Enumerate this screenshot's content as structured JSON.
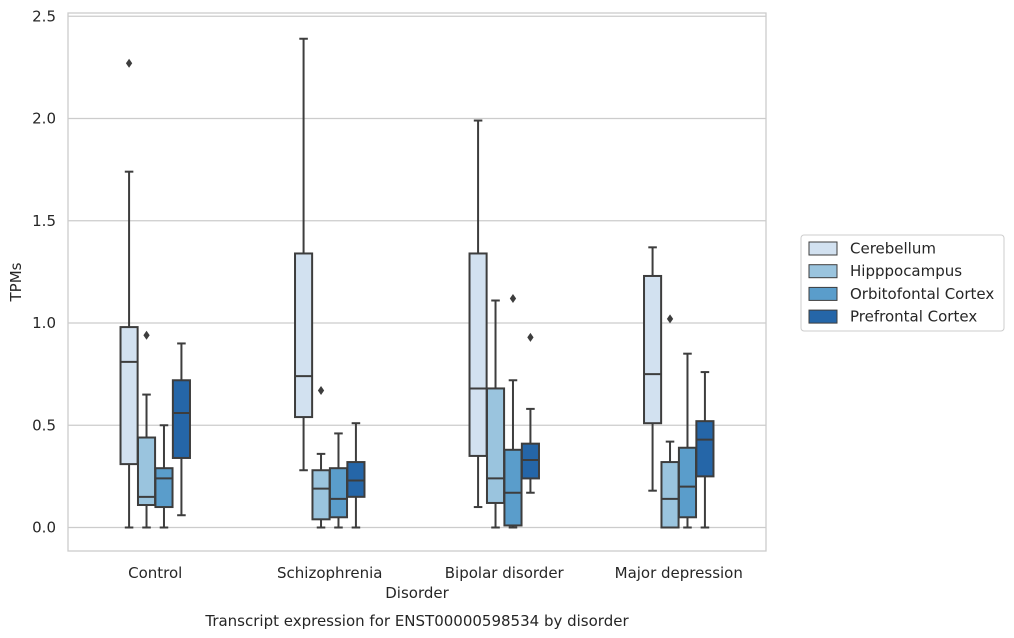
{
  "chart_data": {
    "type": "box",
    "title": "Transcript expression for ENST00000598534 by disorder",
    "xlabel": "Disorder",
    "ylabel": "TPMs",
    "ylim": [
      -0.11,
      2.52
    ],
    "yticks": [
      "0.0",
      "0.5",
      "1.0",
      "1.5",
      "2.0",
      "2.5"
    ],
    "grid": "horizontal",
    "legend_position": "right",
    "categories": [
      "Control",
      "Schizophrenia",
      "Bipolar disorder",
      "Major depression"
    ],
    "series": [
      {
        "name": "Cerebellum",
        "color": "#d2e1f0",
        "boxes": [
          {
            "whislo": 0.0,
            "q1": 0.31,
            "med": 0.81,
            "q3": 0.98,
            "whishi": 1.74,
            "fliers": [
              2.27
            ]
          },
          {
            "whislo": 0.28,
            "q1": 0.54,
            "med": 0.74,
            "q3": 1.34,
            "whishi": 2.39,
            "fliers": []
          },
          {
            "whislo": 0.1,
            "q1": 0.35,
            "med": 0.68,
            "q3": 1.34,
            "whishi": 1.99,
            "fliers": []
          },
          {
            "whislo": 0.18,
            "q1": 0.51,
            "med": 0.75,
            "q3": 1.23,
            "whishi": 1.37,
            "fliers": []
          }
        ]
      },
      {
        "name": "Hipppocampus",
        "color": "#9ac4de",
        "boxes": [
          {
            "whislo": 0.0,
            "q1": 0.11,
            "med": 0.15,
            "q3": 0.44,
            "whishi": 0.65,
            "fliers": [
              0.94
            ]
          },
          {
            "whislo": 0.0,
            "q1": 0.04,
            "med": 0.19,
            "q3": 0.28,
            "whishi": 0.36,
            "fliers": [
              0.67
            ]
          },
          {
            "whislo": 0.0,
            "q1": 0.12,
            "med": 0.24,
            "q3": 0.68,
            "whishi": 1.11,
            "fliers": []
          },
          {
            "whislo": 0.0,
            "q1": 0.0,
            "med": 0.14,
            "q3": 0.32,
            "whishi": 0.42,
            "fliers": [
              1.02
            ]
          }
        ]
      },
      {
        "name": "Orbitofontal Cortex",
        "color": "#5a9dcb",
        "boxes": [
          {
            "whislo": 0.0,
            "q1": 0.1,
            "med": 0.24,
            "q3": 0.29,
            "whishi": 0.5,
            "fliers": []
          },
          {
            "whislo": 0.0,
            "q1": 0.05,
            "med": 0.14,
            "q3": 0.29,
            "whishi": 0.46,
            "fliers": []
          },
          {
            "whislo": 0.0,
            "q1": 0.01,
            "med": 0.17,
            "q3": 0.38,
            "whishi": 0.72,
            "fliers": [
              1.12
            ]
          },
          {
            "whislo": 0.0,
            "q1": 0.05,
            "med": 0.2,
            "q3": 0.39,
            "whishi": 0.85,
            "fliers": []
          }
        ]
      },
      {
        "name": "Prefrontal Cortex",
        "color": "#2566a8",
        "boxes": [
          {
            "whislo": 0.06,
            "q1": 0.34,
            "med": 0.56,
            "q3": 0.72,
            "whishi": 0.9,
            "fliers": []
          },
          {
            "whislo": 0.0,
            "q1": 0.15,
            "med": 0.23,
            "q3": 0.32,
            "whishi": 0.51,
            "fliers": []
          },
          {
            "whislo": 0.17,
            "q1": 0.24,
            "med": 0.33,
            "q3": 0.41,
            "whishi": 0.58,
            "fliers": [
              0.93
            ]
          },
          {
            "whislo": 0.0,
            "q1": 0.25,
            "med": 0.43,
            "q3": 0.52,
            "whishi": 0.76,
            "fliers": []
          }
        ]
      }
    ]
  }
}
